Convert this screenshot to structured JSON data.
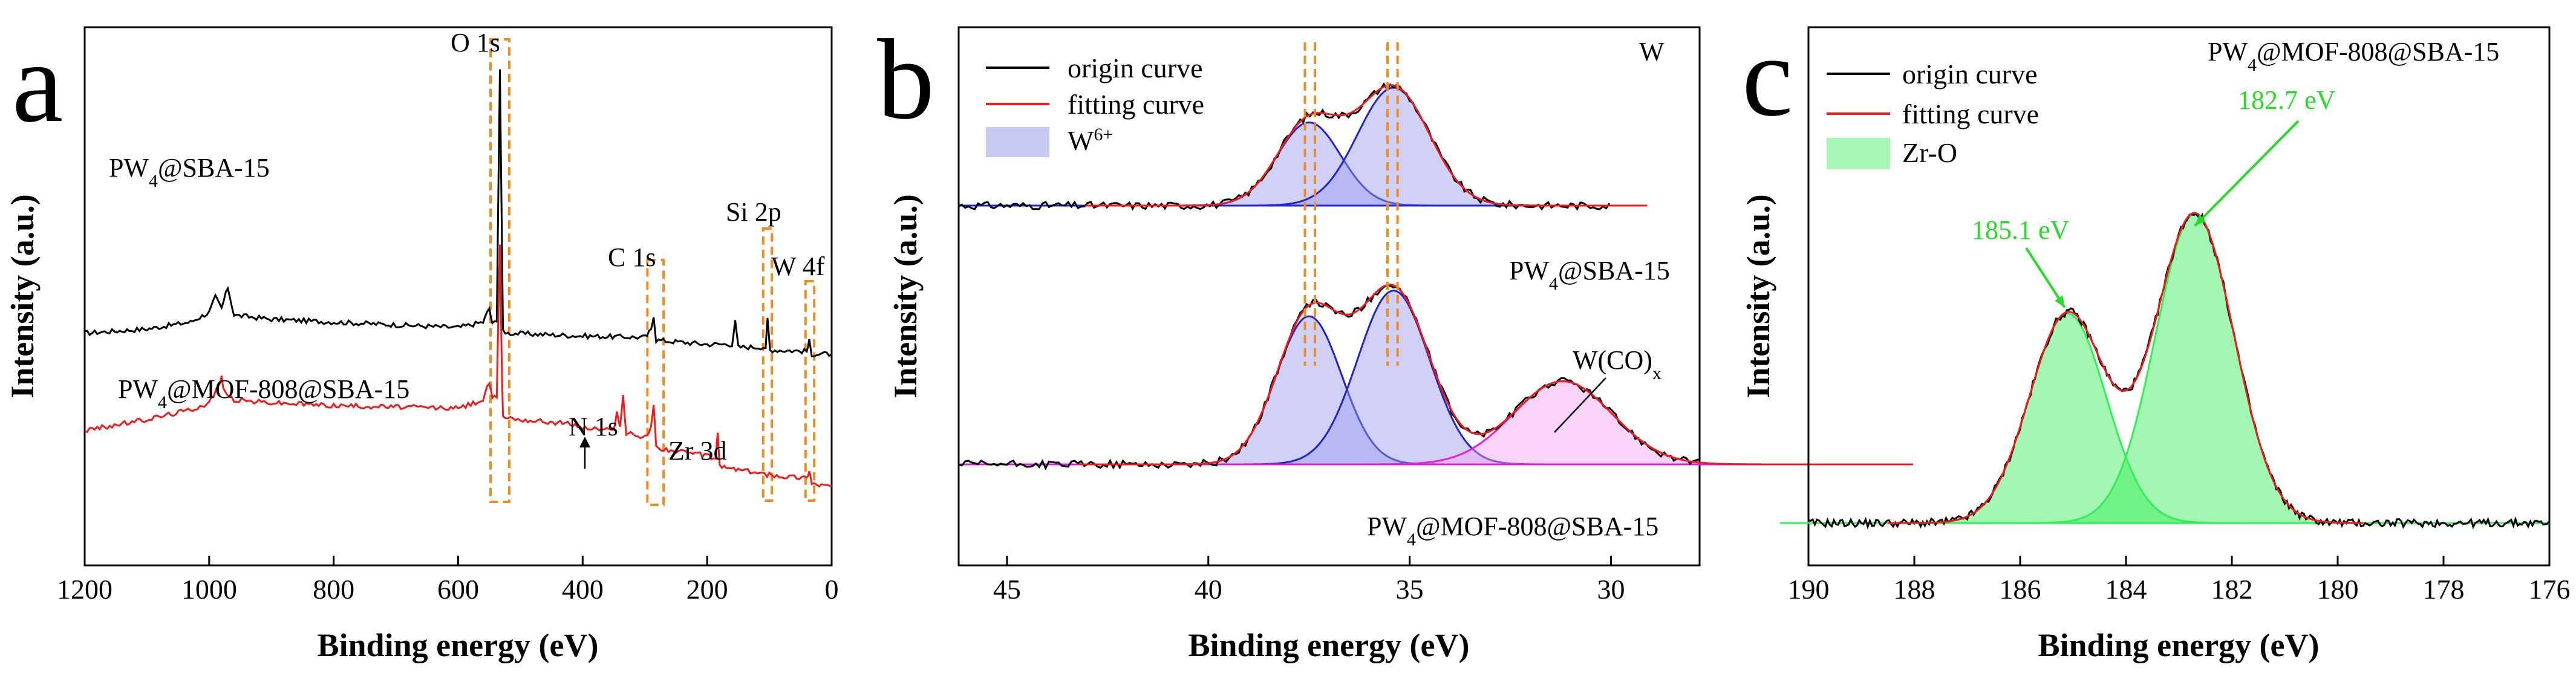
{
  "chart_data": [
    {
      "type": "line",
      "panel": "a",
      "xlabel": "Binding energy (eV)",
      "ylabel": "Intensity (a.u.)",
      "xlim": [
        1200,
        0
      ],
      "x_ticks": [
        "1200",
        "1000",
        "800",
        "600",
        "400",
        "200",
        "0"
      ],
      "series": [
        {
          "name": "PW4@SBA-15",
          "color": "#000000",
          "points": [
            [
              1200,
              0.3
            ],
            [
              1100,
              0.33
            ],
            [
              1030,
              0.38
            ],
            [
              1000,
              0.45
            ],
            [
              990,
              0.56
            ],
            [
              980,
              0.48
            ],
            [
              970,
              0.63
            ],
            [
              960,
              0.43
            ],
            [
              900,
              0.4
            ],
            [
              800,
              0.38
            ],
            [
              700,
              0.36
            ],
            [
              600,
              0.34
            ],
            [
              560,
              0.38
            ],
            [
              550,
              0.48
            ],
            [
              545,
              0.36
            ],
            [
              538,
              0.4
            ],
            [
              533,
              2.2
            ],
            [
              528,
              0.32
            ],
            [
              520,
              0.3
            ],
            [
              400,
              0.28
            ],
            [
              300,
              0.27
            ],
            [
              290,
              0.32
            ],
            [
              286,
              0.43
            ],
            [
              282,
              0.25
            ],
            [
              200,
              0.22
            ],
            [
              160,
              0.22
            ],
            [
              155,
              0.38
            ],
            [
              150,
              0.2
            ],
            [
              106,
              0.2
            ],
            [
              103,
              0.4
            ],
            [
              99,
              0.18
            ],
            [
              40,
              0.17
            ],
            [
              36,
              0.24
            ],
            [
              32,
              0.15
            ],
            [
              0,
              0.15
            ]
          ]
        },
        {
          "name": "PW4@MOF-808@SBA-15",
          "color": "#ee1c1c",
          "points": [
            [
              1200,
              -0.4
            ],
            [
              1100,
              -0.32
            ],
            [
              1030,
              -0.25
            ],
            [
              1000,
              -0.2
            ],
            [
              985,
              -0.08
            ],
            [
              980,
              -0.02
            ],
            [
              975,
              -0.13
            ],
            [
              960,
              -0.18
            ],
            [
              900,
              -0.2
            ],
            [
              800,
              -0.22
            ],
            [
              700,
              -0.23
            ],
            [
              600,
              -0.24
            ],
            [
              560,
              -0.18
            ],
            [
              550,
              -0.05
            ],
            [
              545,
              -0.18
            ],
            [
              538,
              -0.15
            ],
            [
              533,
              0.95
            ],
            [
              530,
              0.1
            ],
            [
              528,
              -0.3
            ],
            [
              500,
              -0.32
            ],
            [
              420,
              -0.35
            ],
            [
              400,
              -0.38
            ],
            [
              350,
              -0.4
            ],
            [
              345,
              -0.25
            ],
            [
              340,
              -0.38
            ],
            [
              335,
              -0.15
            ],
            [
              330,
              -0.42
            ],
            [
              300,
              -0.45
            ],
            [
              290,
              -0.38
            ],
            [
              286,
              -0.2
            ],
            [
              282,
              -0.52
            ],
            [
              250,
              -0.55
            ],
            [
              200,
              -0.58
            ],
            [
              186,
              -0.6
            ],
            [
              183,
              -0.4
            ],
            [
              180,
              -0.66
            ],
            [
              150,
              -0.68
            ],
            [
              100,
              -0.72
            ],
            [
              40,
              -0.74
            ],
            [
              36,
              -0.68
            ],
            [
              32,
              -0.78
            ],
            [
              0,
              -0.8
            ]
          ]
        }
      ],
      "annotations": [
        {
          "text": "O 1s",
          "x": 530
        },
        {
          "text": "C 1s",
          "x": 285
        },
        {
          "text": "Si 2p",
          "x": 103
        },
        {
          "text": "W 4f",
          "x": 36
        },
        {
          "text": "N 1s",
          "x": 400
        },
        {
          "text": "Zr 3d",
          "x": 180
        }
      ],
      "labels": {
        "sample_top": "PW",
        "sample_top_sub": "4",
        "sample_top_rest": "@SBA-15",
        "sample_bottom": "PW",
        "sample_bottom_sub": "4",
        "sample_bottom_rest": "@MOF-808@SBA-15"
      },
      "highlight_color": "#f08c1e"
    },
    {
      "type": "line",
      "panel": "b",
      "title": "W",
      "xlabel": "Binding energy (eV)",
      "ylabel": "Intensity (a.u.)",
      "xlim": [
        46.2,
        27.8
      ],
      "x_ticks": [
        "45",
        "40",
        "35",
        "30"
      ],
      "x_tick_values": [
        45,
        40,
        35,
        30
      ],
      "legend": [
        "origin curve",
        "fitting curve",
        "W",
        "6+"
      ],
      "top_spectrum": {
        "label": "PW",
        "label_sub": "4",
        "label_rest": "@SBA-15",
        "baseline_range": [
          46.2,
          30
        ],
        "peaks": [
          {
            "center": 37.5,
            "height": 0.55,
            "fwhm": 1.85
          },
          {
            "center": 35.4,
            "height": 0.78,
            "fwhm": 2.1
          }
        ]
      },
      "bottom_spectrum": {
        "label": "PW",
        "label_sub": "4",
        "label_rest": "@MOF-808@SBA-15",
        "baseline_range": [
          46.2,
          27.8
        ],
        "peaks": [
          {
            "center": 37.5,
            "height": 0.98,
            "fwhm": 1.9
          },
          {
            "center": 35.4,
            "height": 1.15,
            "fwhm": 2.1
          },
          {
            "center": 31.2,
            "height": 0.55,
            "fwhm": 2.9
          }
        ],
        "annotation": "W(CO)",
        "annotation_sub": "x"
      },
      "dashed_lines_ev": [
        37.6,
        37.35,
        35.55,
        35.3
      ],
      "colors": {
        "origin": "#000000",
        "fit": "#ee1c1c",
        "w6": "#2222cc",
        "wco": "#e020e0",
        "baseline_top": "#1e2ad8",
        "baseline_bottom": "#e020e0",
        "dash": "#f08c1e"
      }
    },
    {
      "type": "line",
      "panel": "c",
      "title": "PW",
      "title_sub": "4",
      "title_rest": "@MOF-808@SBA-15",
      "xlabel": "Binding energy (eV)",
      "ylabel": "Intensity (a.u.)",
      "xlim": [
        190,
        176
      ],
      "x_ticks": [
        "190",
        "188",
        "186",
        "184",
        "182",
        "180",
        "178",
        "176"
      ],
      "x_tick_values": [
        190,
        188,
        186,
        184,
        182,
        180,
        178,
        176
      ],
      "legend": [
        "origin curve",
        "fitting curve",
        "Zr-O"
      ],
      "peaks": [
        {
          "center": 185.1,
          "height": 1.05,
          "fwhm": 1.7,
          "label": "185.1 eV"
        },
        {
          "center": 182.7,
          "height": 1.55,
          "fwhm": 1.75,
          "label": "182.7 eV"
        }
      ],
      "colors": {
        "origin": "#000000",
        "fit": "#ee1c1c",
        "fill": "#33ee55",
        "annot": "#22dd22"
      }
    }
  ]
}
